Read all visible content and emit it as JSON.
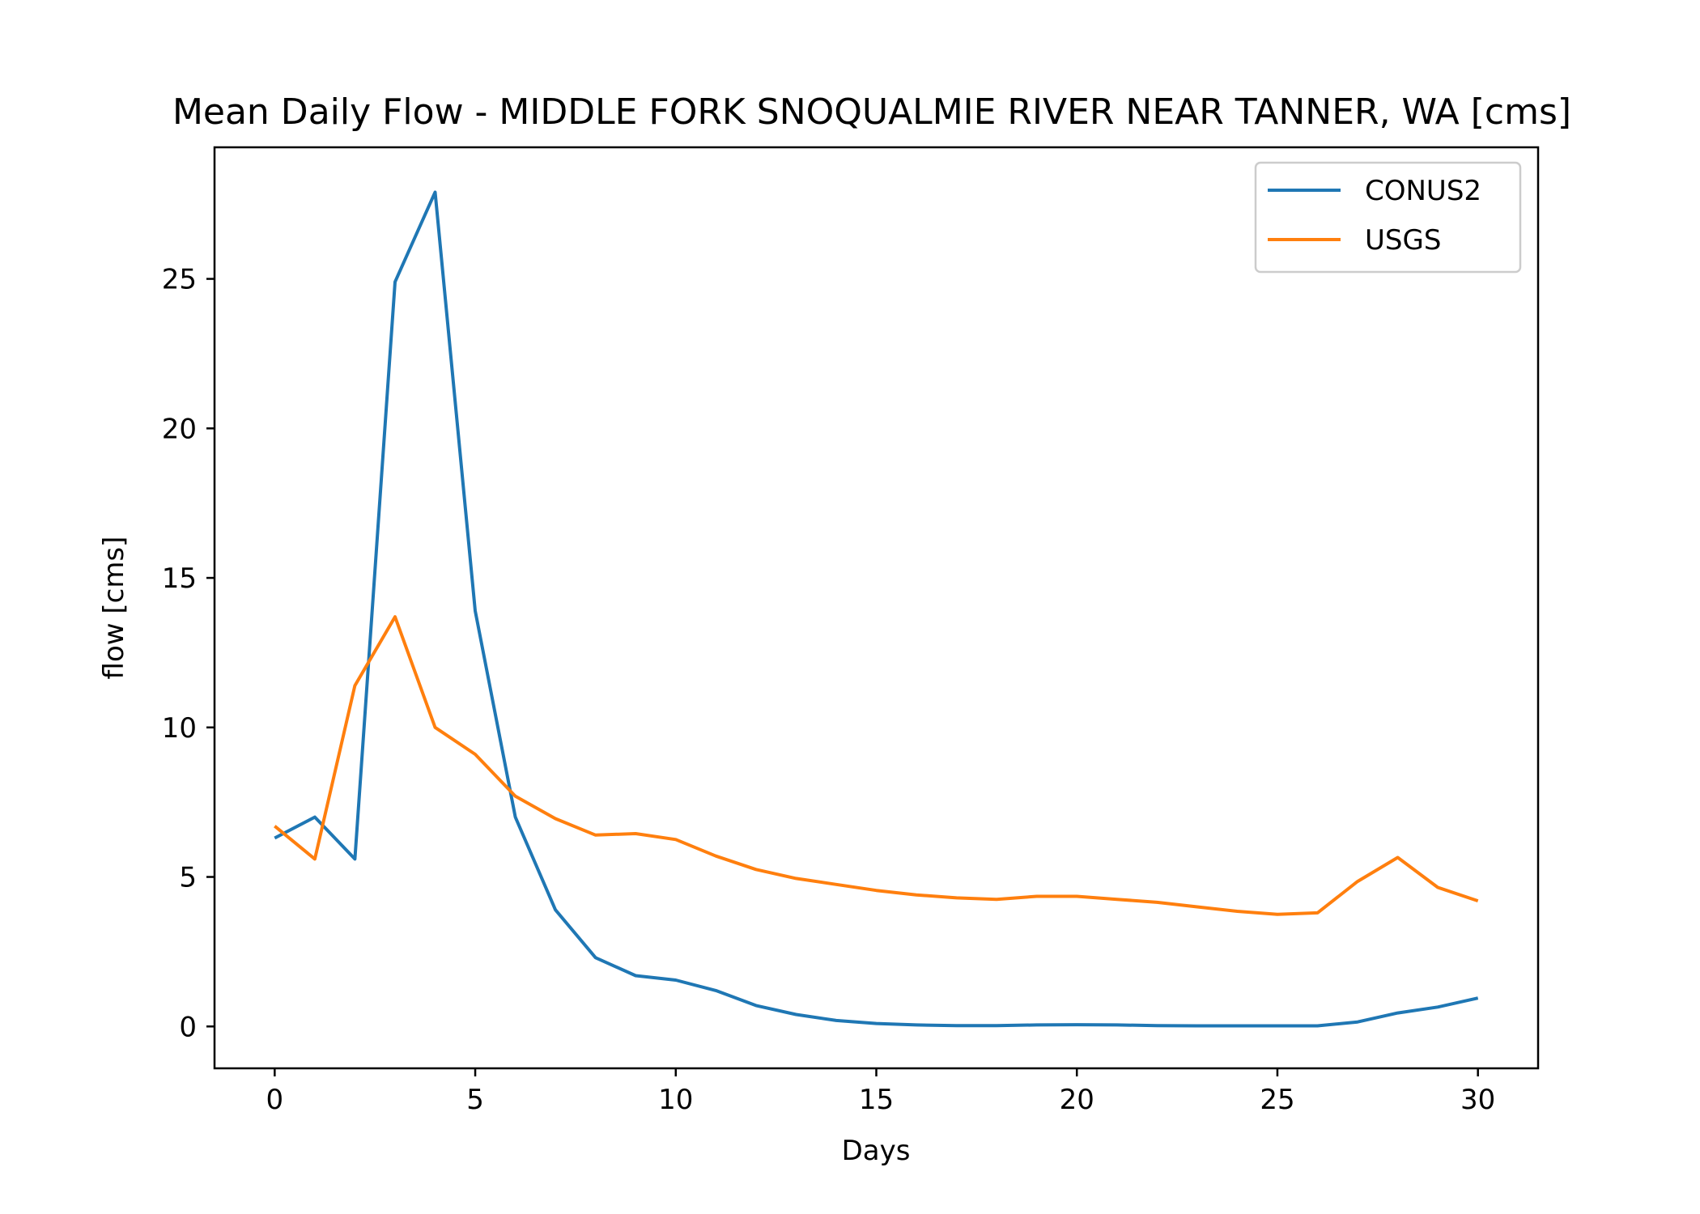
{
  "chart_data": {
    "type": "line",
    "title": "Mean Daily Flow - MIDDLE FORK SNOQUALMIE RIVER NEAR TANNER, WA [cms]",
    "xlabel": "Days",
    "ylabel": "flow [cms]",
    "xlim": [
      -1.5,
      31.5
    ],
    "ylim": [
      -1.4,
      29.4
    ],
    "xticks": [
      0,
      5,
      10,
      15,
      20,
      25,
      30
    ],
    "yticks": [
      0,
      5,
      10,
      15,
      20,
      25
    ],
    "grid": false,
    "legend_position": "upper right",
    "x": [
      0,
      1,
      2,
      3,
      4,
      5,
      6,
      7,
      8,
      9,
      10,
      11,
      12,
      13,
      14,
      15,
      16,
      17,
      18,
      19,
      20,
      21,
      22,
      23,
      24,
      25,
      26,
      27,
      28,
      29,
      30
    ],
    "series": [
      {
        "name": "CONUS2",
        "color": "#1f77b4",
        "values": [
          6.3,
          7.0,
          5.6,
          24.9,
          27.9,
          13.9,
          7.0,
          3.9,
          2.3,
          1.7,
          1.55,
          1.2,
          0.7,
          0.4,
          0.2,
          0.1,
          0.05,
          0.03,
          0.03,
          0.05,
          0.06,
          0.05,
          0.03,
          0.02,
          0.02,
          0.02,
          0.02,
          0.15,
          0.45,
          0.65,
          0.95
        ]
      },
      {
        "name": "USGS",
        "color": "#ff7f0e",
        "values": [
          6.7,
          5.6,
          11.4,
          13.7,
          10.0,
          9.1,
          7.7,
          6.95,
          6.4,
          6.45,
          6.25,
          5.7,
          5.25,
          4.95,
          4.75,
          4.55,
          4.4,
          4.3,
          4.25,
          4.35,
          4.35,
          4.25,
          4.15,
          4.0,
          3.85,
          3.75,
          3.8,
          4.85,
          5.65,
          4.65,
          4.2
        ]
      }
    ]
  }
}
